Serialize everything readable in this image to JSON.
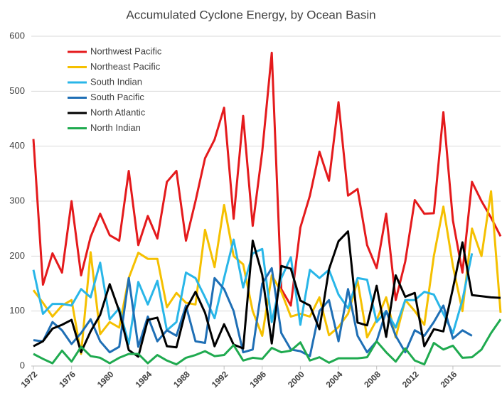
{
  "chart_data": {
    "type": "line",
    "title": "Accumulated Cyclone Energy, by Ocean Basin",
    "x": [
      1972,
      1973,
      1974,
      1975,
      1976,
      1977,
      1978,
      1979,
      1980,
      1981,
      1982,
      1983,
      1984,
      1985,
      1986,
      1987,
      1988,
      1989,
      1990,
      1991,
      1992,
      1993,
      1994,
      1995,
      1996,
      1997,
      1998,
      1999,
      2000,
      2001,
      2002,
      2003,
      2004,
      2005,
      2006,
      2007,
      2008,
      2009,
      2010,
      2011,
      2012,
      2013,
      2014,
      2015,
      2016,
      2017,
      2018,
      2019,
      2020,
      2021
    ],
    "xlim": [
      1972,
      2021
    ],
    "xticks": [
      1972,
      1976,
      1980,
      1984,
      1988,
      1992,
      1996,
      2000,
      2004,
      2008,
      2012,
      2016
    ],
    "ylim": [
      0,
      600
    ],
    "yticks": [
      0,
      100,
      200,
      300,
      400,
      500,
      600
    ],
    "grid": true,
    "legend": "top-left",
    "series": [
      {
        "name": "Northwest Pacific",
        "color": "#e41a1c",
        "values": [
          413,
          148,
          205,
          170,
          300,
          165,
          235,
          277,
          238,
          228,
          355,
          220,
          273,
          232,
          335,
          355,
          228,
          300,
          378,
          412,
          470,
          268,
          455,
          255,
          390,
          570,
          140,
          110,
          252,
          310,
          390,
          337,
          480,
          310,
          322,
          220,
          178,
          277,
          120,
          190,
          302,
          277,
          278,
          462,
          265,
          170,
          335,
          300,
          270,
          236
        ]
      },
      {
        "name": "Northeast Pacific",
        "color": "#f5c000",
        "values": [
          138,
          115,
          90,
          110,
          120,
          22,
          207,
          58,
          80,
          70,
          160,
          206,
          195,
          195,
          107,
          133,
          115,
          112,
          248,
          180,
          293,
          200,
          185,
          100,
          55,
          165,
          135,
          90,
          95,
          90,
          125,
          56,
          71,
          95,
          155,
          52,
          84,
          125,
          52,
          120,
          100,
          75,
          200,
          290,
          182,
          100,
          250,
          200,
          318,
          97
        ]
      },
      {
        "name": "South Indian",
        "color": "#29b6e8",
        "values": [
          175,
          95,
          113,
          113,
          110,
          140,
          125,
          188,
          85,
          105,
          40,
          153,
          112,
          155,
          65,
          80,
          170,
          160,
          125,
          87,
          160,
          230,
          143,
          205,
          213,
          80,
          160,
          198,
          75,
          175,
          160,
          175,
          130,
          105,
          160,
          157,
          80,
          100,
          70,
          120,
          120,
          135,
          130,
          95,
          60,
          120,
          205,
          null,
          null,
          null
        ]
      },
      {
        "name": "South Pacific",
        "color": "#1f6fb5",
        "values": [
          47,
          45,
          80,
          65,
          40,
          60,
          85,
          45,
          25,
          35,
          160,
          35,
          90,
          45,
          65,
          55,
          110,
          45,
          42,
          160,
          140,
          100,
          25,
          30,
          150,
          178,
          60,
          30,
          27,
          18,
          100,
          120,
          45,
          140,
          55,
          25,
          45,
          100,
          55,
          25,
          65,
          55,
          80,
          110,
          50,
          65,
          55,
          null,
          null,
          null
        ]
      },
      {
        "name": "North Atlantic",
        "color": "#000000",
        "values": [
          36,
          45,
          68,
          75,
          84,
          25,
          63,
          93,
          149,
          100,
          29,
          17,
          84,
          88,
          36,
          34,
          103,
          135,
          97,
          36,
          76,
          39,
          32,
          228,
          166,
          41,
          182,
          177,
          119,
          110,
          67,
          176,
          227,
          245,
          79,
          74,
          146,
          53,
          165,
          126,
          133,
          36,
          67,
          63,
          141,
          225,
          129,
          127,
          125,
          124
        ]
      },
      {
        "name": "North Indian",
        "color": "#1faa4f",
        "values": [
          22,
          13,
          5,
          28,
          8,
          35,
          18,
          15,
          5,
          15,
          22,
          22,
          5,
          20,
          10,
          3,
          15,
          20,
          27,
          18,
          20,
          38,
          10,
          15,
          13,
          33,
          25,
          28,
          43,
          10,
          16,
          6,
          14,
          14,
          14,
          16,
          45,
          25,
          8,
          32,
          10,
          3,
          42,
          30,
          37,
          15,
          16,
          30,
          60,
          85
        ]
      }
    ]
  }
}
